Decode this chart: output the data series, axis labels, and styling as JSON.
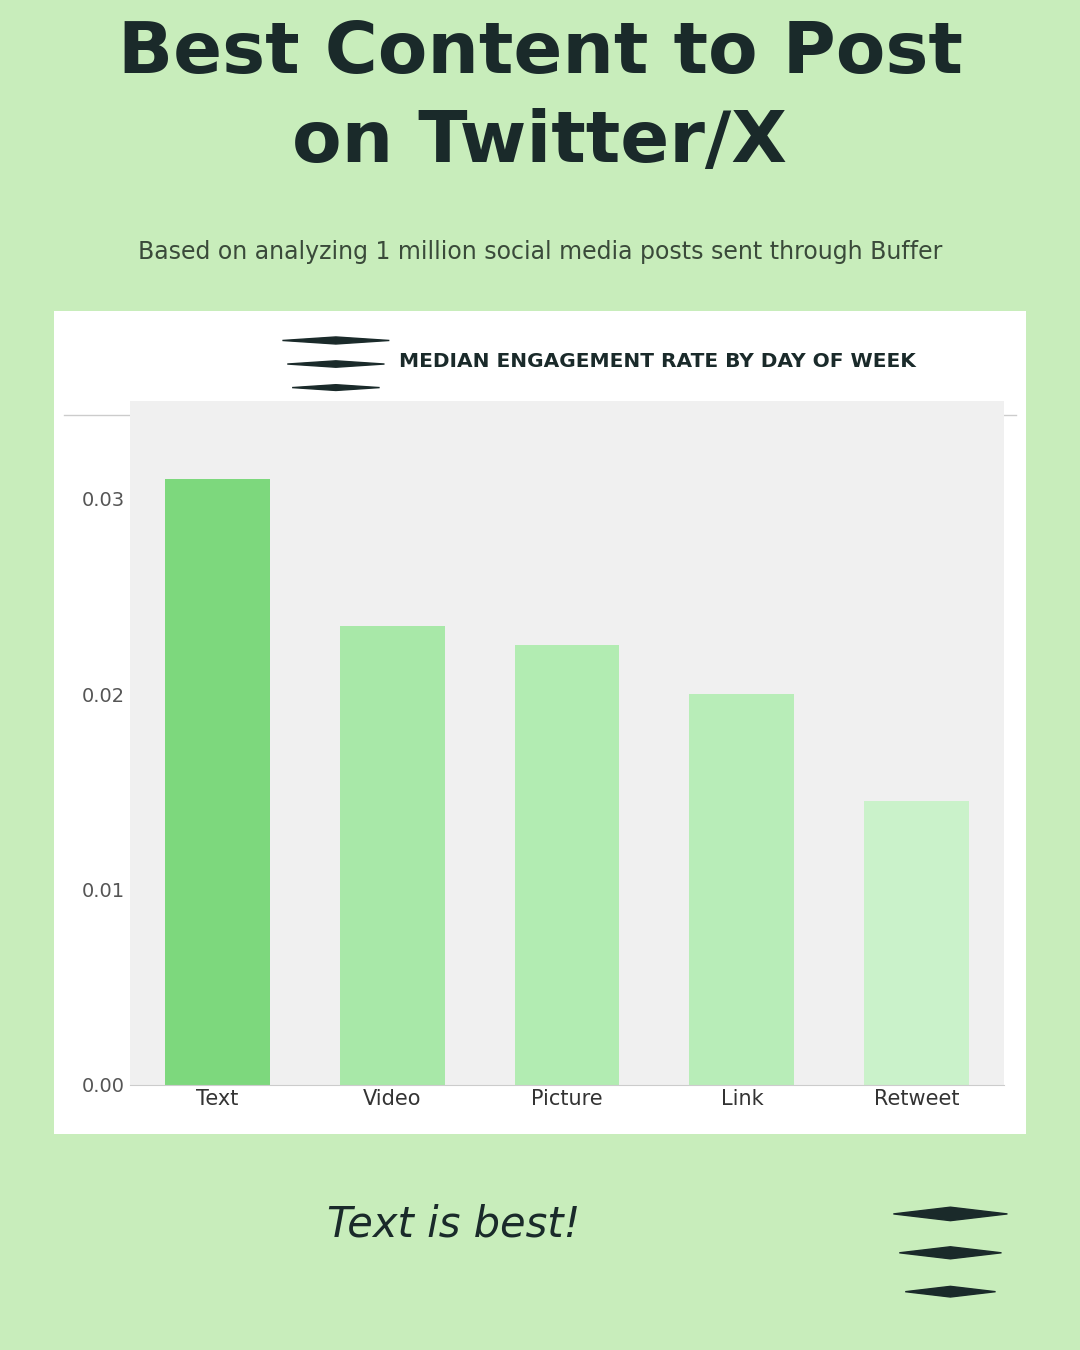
{
  "title_line1": "Best Content to Post",
  "title_line2": "on Twitter/X",
  "subtitle": "Based on analyzing 1 million social media posts sent through Buffer",
  "chart_title": "MEDIAN ENGAGEMENT RATE BY DAY OF WEEK",
  "categories": [
    "Text",
    "Video",
    "Picture",
    "Link",
    "Retweet"
  ],
  "values": [
    0.031,
    0.0235,
    0.0225,
    0.02,
    0.0145
  ],
  "bar_colors": [
    "#7dd87d",
    "#a8e8a8",
    "#b2ecb2",
    "#b8edb8",
    "#caf2ca"
  ],
  "annotation": "Text is best!",
  "bg_color": "#c8edbb",
  "chart_bg": "#f0f0f0",
  "chart_border": "#2d3e3e",
  "title_color": "#1a2a2a",
  "subtitle_color": "#3a4a3a",
  "yticks": [
    0.0,
    0.01,
    0.02,
    0.03
  ],
  "ylim": [
    0,
    0.035
  ],
  "tick_label_color": "#555555",
  "axis_label_color": "#333333"
}
